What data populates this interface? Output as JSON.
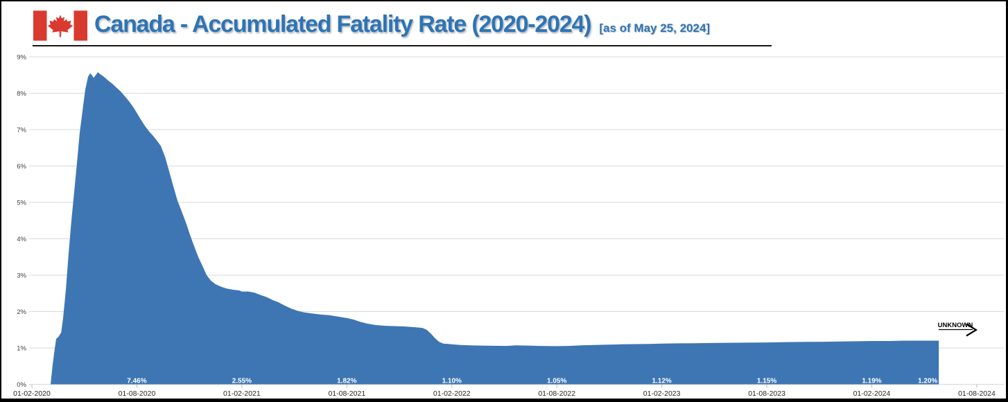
{
  "header": {
    "title": "Canada - Accumulated Fatality Rate (2020-2024)",
    "subtitle": "[as of May 25, 2024]"
  },
  "colors": {
    "title": "#2E74B5",
    "flag_red": "#D93A2F",
    "area": "#3E76B4",
    "grid": "#D9D9D9",
    "axis_text": "#3F3F3F",
    "data_label_text": "#FFFFFF"
  },
  "annotation": {
    "label": "UNKNOWN"
  },
  "chart_data": {
    "type": "area",
    "title": "Canada - Accumulated Fatality Rate (2020-2024)",
    "as_of": "May 25, 2024",
    "grid": true,
    "legend": false,
    "area_color": "#3E76B4",
    "x_axis": {
      "tick_interval_months": 6,
      "tick_labels": [
        "01-02-2020",
        "01-08-2020",
        "01-02-2021",
        "01-08-2021",
        "01-02-2022",
        "01-08-2022",
        "01-02-2023",
        "01-08-2023",
        "01-02-2024",
        "01-08-2024"
      ]
    },
    "y_axis": {
      "min": 0,
      "max": 9,
      "unit": "%",
      "tick_labels": [
        "0%",
        "1%",
        "2%",
        "3%",
        "4%",
        "5%",
        "6%",
        "7%",
        "8%",
        "9%"
      ]
    },
    "data_labels": [
      {
        "t": 6,
        "label": "7.46%"
      },
      {
        "t": 12,
        "label": "2.55%"
      },
      {
        "t": 18,
        "label": "1.82%"
      },
      {
        "t": 24,
        "label": "1.10%"
      },
      {
        "t": 30,
        "label": "1.05%"
      },
      {
        "t": 36,
        "label": "1.12%"
      },
      {
        "t": 42,
        "label": "1.15%"
      },
      {
        "t": 48,
        "label": "1.19%"
      },
      {
        "t": 51.8,
        "label": "1.20%",
        "anchor": "end"
      }
    ],
    "series": [
      {
        "name": "Accumulated fatality rate",
        "points": [
          [
            1.07,
            0
          ],
          [
            1.19,
            0.55
          ],
          [
            1.31,
            1.0
          ],
          [
            1.39,
            1.25
          ],
          [
            1.51,
            1.3
          ],
          [
            1.67,
            1.42
          ],
          [
            1.78,
            1.8
          ],
          [
            1.94,
            2.6
          ],
          [
            2.1,
            3.6
          ],
          [
            2.26,
            4.5
          ],
          [
            2.42,
            5.3
          ],
          [
            2.58,
            6.1
          ],
          [
            2.73,
            6.9
          ],
          [
            2.89,
            7.5
          ],
          [
            3.05,
            8.1
          ],
          [
            3.21,
            8.45
          ],
          [
            3.33,
            8.55
          ],
          [
            3.45,
            8.48
          ],
          [
            3.53,
            8.42
          ],
          [
            3.65,
            8.5
          ],
          [
            3.77,
            8.58
          ],
          [
            3.92,
            8.52
          ],
          [
            4.12,
            8.45
          ],
          [
            4.36,
            8.35
          ],
          [
            4.6,
            8.26
          ],
          [
            4.84,
            8.15
          ],
          [
            5.07,
            8.05
          ],
          [
            5.31,
            7.92
          ],
          [
            5.55,
            7.78
          ],
          [
            5.79,
            7.62
          ],
          [
            6.0,
            7.46
          ],
          [
            6.22,
            7.28
          ],
          [
            6.46,
            7.1
          ],
          [
            6.7,
            6.95
          ],
          [
            6.94,
            6.82
          ],
          [
            7.17,
            6.68
          ],
          [
            7.37,
            6.55
          ],
          [
            7.61,
            6.25
          ],
          [
            7.85,
            5.85
          ],
          [
            8.08,
            5.45
          ],
          [
            8.32,
            5.05
          ],
          [
            8.56,
            4.75
          ],
          [
            8.8,
            4.45
          ],
          [
            9.04,
            4.1
          ],
          [
            9.27,
            3.8
          ],
          [
            9.51,
            3.5
          ],
          [
            9.75,
            3.25
          ],
          [
            9.99,
            3.0
          ],
          [
            10.23,
            2.85
          ],
          [
            10.5,
            2.75
          ],
          [
            10.82,
            2.68
          ],
          [
            11.14,
            2.63
          ],
          [
            11.49,
            2.6
          ],
          [
            11.85,
            2.58
          ],
          [
            12.0,
            2.55
          ],
          [
            12.37,
            2.55
          ],
          [
            12.72,
            2.52
          ],
          [
            13.04,
            2.46
          ],
          [
            13.4,
            2.4
          ],
          [
            13.75,
            2.32
          ],
          [
            14.11,
            2.25
          ],
          [
            14.47,
            2.16
          ],
          [
            14.82,
            2.08
          ],
          [
            15.18,
            2.02
          ],
          [
            15.54,
            1.98
          ],
          [
            15.97,
            1.95
          ],
          [
            16.49,
            1.92
          ],
          [
            17.0,
            1.9
          ],
          [
            17.52,
            1.86
          ],
          [
            18.0,
            1.82
          ],
          [
            18.39,
            1.78
          ],
          [
            18.75,
            1.72
          ],
          [
            19.15,
            1.67
          ],
          [
            19.62,
            1.63
          ],
          [
            20.14,
            1.61
          ],
          [
            20.69,
            1.6
          ],
          [
            21.29,
            1.59
          ],
          [
            21.88,
            1.57
          ],
          [
            22.32,
            1.55
          ],
          [
            22.56,
            1.5
          ],
          [
            22.79,
            1.4
          ],
          [
            23.03,
            1.27
          ],
          [
            23.27,
            1.17
          ],
          [
            23.51,
            1.12
          ],
          [
            23.79,
            1.11
          ],
          [
            24.0,
            1.1
          ],
          [
            24.5,
            1.08
          ],
          [
            25.05,
            1.07
          ],
          [
            25.69,
            1.065
          ],
          [
            26.4,
            1.06
          ],
          [
            27.11,
            1.055
          ],
          [
            27.67,
            1.07
          ],
          [
            28.3,
            1.065
          ],
          [
            28.98,
            1.055
          ],
          [
            30.0,
            1.05
          ],
          [
            30.68,
            1.055
          ],
          [
            31.4,
            1.07
          ],
          [
            32.15,
            1.08
          ],
          [
            32.9,
            1.09
          ],
          [
            33.65,
            1.1
          ],
          [
            34.41,
            1.105
          ],
          [
            35.2,
            1.11
          ],
          [
            36.0,
            1.12
          ],
          [
            36.9,
            1.125
          ],
          [
            37.81,
            1.13
          ],
          [
            38.76,
            1.135
          ],
          [
            39.71,
            1.14
          ],
          [
            40.74,
            1.145
          ],
          [
            42.0,
            1.15
          ],
          [
            43.04,
            1.16
          ],
          [
            44.15,
            1.165
          ],
          [
            45.26,
            1.17
          ],
          [
            46.37,
            1.18
          ],
          [
            47.4,
            1.185
          ],
          [
            48.0,
            1.19
          ],
          [
            48.98,
            1.19
          ],
          [
            49.85,
            1.2
          ],
          [
            51.83,
            1.2
          ]
        ]
      }
    ]
  }
}
